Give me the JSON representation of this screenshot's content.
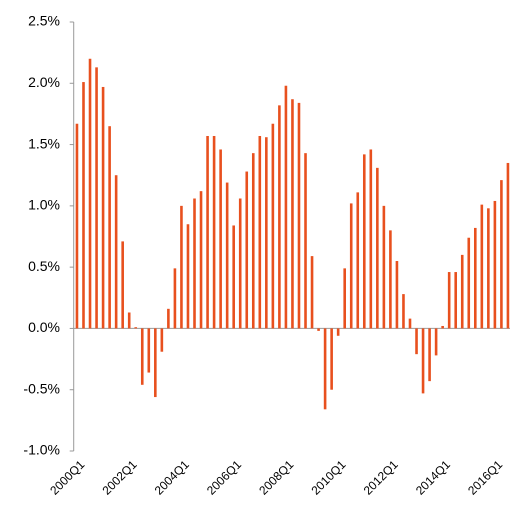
{
  "chart_data": {
    "type": "bar",
    "color": "#e8501e",
    "categories": [
      "2000Q1",
      null,
      null,
      null,
      null,
      null,
      null,
      null,
      "2002Q1",
      null,
      null,
      null,
      null,
      null,
      null,
      null,
      "2004Q1",
      null,
      null,
      null,
      null,
      null,
      null,
      null,
      "2006Q1",
      null,
      null,
      null,
      null,
      null,
      null,
      null,
      "2008Q1",
      null,
      null,
      null,
      null,
      null,
      null,
      null,
      "2010Q1",
      null,
      null,
      null,
      null,
      null,
      null,
      null,
      "2012Q1",
      null,
      null,
      null,
      null,
      null,
      null,
      null,
      "2014Q1",
      null,
      null,
      null,
      null,
      null,
      null,
      null,
      "2016Q1",
      null,
      null
    ],
    "values": [
      1.67,
      2.01,
      2.2,
      2.13,
      1.97,
      1.65,
      1.25,
      0.71,
      0.13,
      0.01,
      -0.46,
      -0.36,
      -0.56,
      -0.19,
      0.16,
      0.49,
      1.0,
      0.85,
      1.06,
      1.12,
      1.57,
      1.57,
      1.46,
      1.19,
      0.84,
      1.06,
      1.28,
      1.43,
      1.57,
      1.56,
      1.67,
      1.82,
      1.98,
      1.87,
      1.84,
      1.43,
      0.59,
      -0.02,
      -0.66,
      -0.5,
      -0.06,
      0.49,
      1.02,
      1.11,
      1.42,
      1.46,
      1.31,
      1.0,
      0.8,
      0.55,
      0.28,
      0.08,
      -0.21,
      -0.53,
      -0.43,
      -0.22,
      0.02,
      0.46,
      0.46,
      0.6,
      0.74,
      0.82,
      1.01,
      0.98,
      1.04,
      1.21,
      1.35
    ],
    "ylim": [
      -1,
      2.5
    ],
    "yticks": [
      {
        "value": -1,
        "label": "-1.0%"
      },
      {
        "value": -0.5,
        "label": "-0.5%"
      },
      {
        "value": 0,
        "label": "0.0%"
      },
      {
        "value": 0.5,
        "label": "0.5%"
      },
      {
        "value": 1,
        "label": "1.0%"
      },
      {
        "value": 1.5,
        "label": "1.5%"
      },
      {
        "value": 2,
        "label": "2.0%"
      },
      {
        "value": 2.5,
        "label": "2.5%"
      }
    ],
    "grid": false
  }
}
